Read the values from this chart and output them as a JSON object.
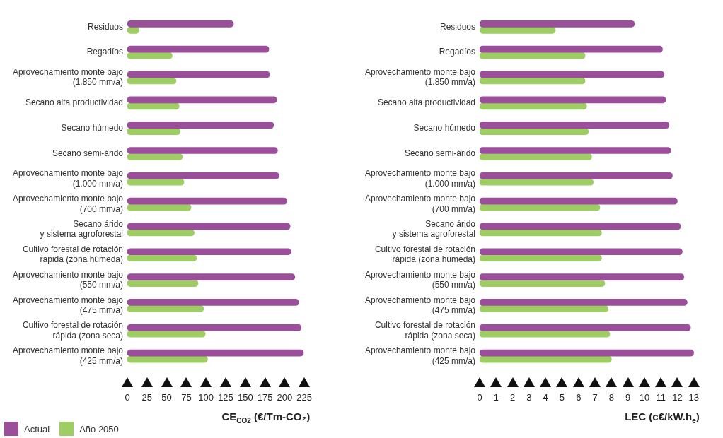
{
  "chart_data": [
    {
      "type": "bar",
      "orientation": "horizontal",
      "xlabel": "CE$_{CO2}$ (€/Tm-CO₂)",
      "legend": "bottom left",
      "grid": false,
      "categories": [
        "Residuos",
        "Regadíos",
        "Aprovechamiento monte bajo\n(1.850 mm/a)",
        "Secano alta productividad",
        "Secano húmedo",
        "Secano semi-árido",
        "Aprovechamiento monte bajo\n(1.000 mm/a)",
        "Aprovechamiento monte bajo\n(700 mm/a)",
        "Secano árido\ny sistema agroforestal",
        "Cultivo forestal de rotación\nrápida (zona húmeda)",
        "Aprovechamiento monte bajo\n(550 mm/a)",
        "Aprovechamiento monte bajo\n(475 mm/a)",
        "Cultivo forestal de rotación\nrápida (zona seca)",
        "Aprovechamiento monte bajo\n(425 mm/a)"
      ],
      "xlim": [
        0,
        225
      ],
      "xticks": [
        0,
        25,
        50,
        75,
        100,
        125,
        150,
        175,
        200,
        225
      ],
      "series": [
        {
          "name": "Actual",
          "color": "#9b4f9b",
          "values": [
            135,
            180,
            181,
            190,
            186,
            191,
            193,
            203,
            207,
            208,
            213,
            218,
            221,
            224
          ]
        },
        {
          "name": "Año 2050",
          "color": "#9ecd63",
          "values": [
            15,
            57,
            62,
            66,
            67,
            70,
            72,
            81,
            85,
            88,
            90,
            97,
            99,
            102
          ]
        }
      ]
    },
    {
      "type": "bar",
      "orientation": "horizontal",
      "xlabel": "LEC (c€/kW.h$_{e}$)",
      "grid": false,
      "categories": [
        "Residuos",
        "Regadíos",
        "Aprovechamiento monte bajo\n(1.850 mm/a)",
        "Secano alta productividad",
        "Secano húmedo",
        "Secano semi-árido",
        "Aprovechamiento monte bajo\n(1.000 mm/a)",
        "Aprovechamiento monte bajo\n(700 mm/a)",
        "Secano árido\ny sistema agroforestal",
        "Cultivo forestal de rotación\nrápida (zona húmeda)",
        "Aprovechamiento monte bajo\n(550 mm/a)",
        "Aprovechamiento monte bajo\n(475 mm/a)",
        "Cultivo forestal de rotación\nrápida (zona seca)",
        "Aprovechamiento monte bajo\n(425 mm/a)"
      ],
      "xlim": [
        0,
        13
      ],
      "xticks": [
        0,
        1,
        2,
        3,
        4,
        5,
        6,
        7,
        8,
        9,
        10,
        11,
        12,
        13
      ],
      "series": [
        {
          "color": "#9b4f9b",
          "values": [
            9.4,
            11.1,
            11.2,
            11.3,
            11.5,
            11.6,
            11.7,
            12.0,
            12.2,
            12.3,
            12.4,
            12.6,
            12.8,
            13.0
          ]
        },
        {
          "color": "#9ecd63",
          "values": [
            4.6,
            6.4,
            6.4,
            6.5,
            6.6,
            6.8,
            6.9,
            7.3,
            7.4,
            7.4,
            7.6,
            7.8,
            7.9,
            8.0
          ]
        }
      ]
    }
  ]
}
